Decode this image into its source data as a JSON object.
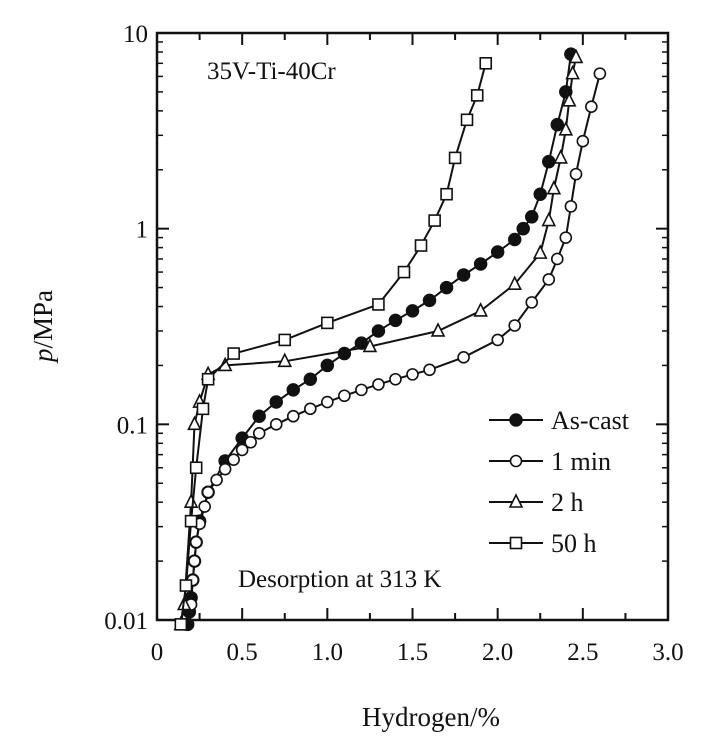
{
  "chart_data": {
    "type": "line",
    "x_scale": "linear",
    "y_scale": "log",
    "xlabel": "Hydrogen/%",
    "ylabel_italic": "p",
    "ylabel_rest": "/MPa",
    "xlim": [
      0,
      3.0
    ],
    "ylim": [
      0.01,
      10
    ],
    "x_ticks": [
      0,
      0.5,
      1.0,
      1.5,
      2.0,
      2.5,
      3.0
    ],
    "x_tick_labels": [
      "0",
      "0.5",
      "1.0",
      "1.5",
      "2.0",
      "2.5",
      "3.0"
    ],
    "y_ticks": [
      0.01,
      0.1,
      1,
      10
    ],
    "y_tick_labels": [
      "0.01",
      "0.1",
      "1",
      "10"
    ],
    "grid": false,
    "legend_position": "lower-right",
    "annotations": {
      "alloy": "35V-Ti-40Cr",
      "condition": "Desorption at 313 K"
    },
    "series": [
      {
        "name": "As-cast",
        "marker": "filled-circle",
        "points": [
          [
            0.18,
            0.0095
          ],
          [
            0.19,
            0.011
          ],
          [
            0.2,
            0.013
          ],
          [
            0.21,
            0.016
          ],
          [
            0.22,
            0.02
          ],
          [
            0.23,
            0.025
          ],
          [
            0.25,
            0.032
          ],
          [
            0.3,
            0.045
          ],
          [
            0.4,
            0.065
          ],
          [
            0.5,
            0.085
          ],
          [
            0.6,
            0.11
          ],
          [
            0.7,
            0.13
          ],
          [
            0.8,
            0.15
          ],
          [
            0.9,
            0.17
          ],
          [
            1.0,
            0.2
          ],
          [
            1.1,
            0.23
          ],
          [
            1.2,
            0.26
          ],
          [
            1.3,
            0.3
          ],
          [
            1.4,
            0.34
          ],
          [
            1.5,
            0.38
          ],
          [
            1.6,
            0.43
          ],
          [
            1.7,
            0.5
          ],
          [
            1.8,
            0.58
          ],
          [
            1.9,
            0.66
          ],
          [
            2.0,
            0.76
          ],
          [
            2.1,
            0.88
          ],
          [
            2.15,
            1.0
          ],
          [
            2.2,
            1.15
          ],
          [
            2.25,
            1.5
          ],
          [
            2.3,
            2.2
          ],
          [
            2.35,
            3.4
          ],
          [
            2.4,
            5.0
          ],
          [
            2.43,
            7.8
          ]
        ]
      },
      {
        "name": "1 min",
        "marker": "open-circle",
        "points": [
          [
            0.2,
            0.012
          ],
          [
            0.21,
            0.016
          ],
          [
            0.22,
            0.02
          ],
          [
            0.23,
            0.025
          ],
          [
            0.25,
            0.031
          ],
          [
            0.28,
            0.038
          ],
          [
            0.3,
            0.045
          ],
          [
            0.35,
            0.052
          ],
          [
            0.4,
            0.059
          ],
          [
            0.45,
            0.066
          ],
          [
            0.5,
            0.074
          ],
          [
            0.55,
            0.081
          ],
          [
            0.6,
            0.09
          ],
          [
            0.7,
            0.1
          ],
          [
            0.8,
            0.11
          ],
          [
            0.9,
            0.12
          ],
          [
            1.0,
            0.13
          ],
          [
            1.1,
            0.14
          ],
          [
            1.2,
            0.15
          ],
          [
            1.3,
            0.16
          ],
          [
            1.4,
            0.17
          ],
          [
            1.5,
            0.18
          ],
          [
            1.6,
            0.19
          ],
          [
            1.8,
            0.22
          ],
          [
            2.0,
            0.27
          ],
          [
            2.1,
            0.32
          ],
          [
            2.2,
            0.42
          ],
          [
            2.3,
            0.55
          ],
          [
            2.35,
            0.7
          ],
          [
            2.4,
            0.9
          ],
          [
            2.43,
            1.3
          ],
          [
            2.46,
            1.9
          ],
          [
            2.5,
            2.8
          ],
          [
            2.55,
            4.2
          ],
          [
            2.6,
            6.2
          ]
        ]
      },
      {
        "name": "2 h",
        "marker": "open-triangle",
        "points": [
          [
            0.14,
            0.0095
          ],
          [
            0.16,
            0.012
          ],
          [
            0.2,
            0.04
          ],
          [
            0.22,
            0.1
          ],
          [
            0.25,
            0.13
          ],
          [
            0.3,
            0.18
          ],
          [
            0.4,
            0.2
          ],
          [
            0.75,
            0.21
          ],
          [
            1.25,
            0.25
          ],
          [
            1.65,
            0.3
          ],
          [
            1.9,
            0.38
          ],
          [
            2.1,
            0.52
          ],
          [
            2.25,
            0.75
          ],
          [
            2.3,
            1.1
          ],
          [
            2.33,
            1.6
          ],
          [
            2.37,
            2.3
          ],
          [
            2.4,
            3.2
          ],
          [
            2.42,
            4.5
          ],
          [
            2.44,
            6.2
          ],
          [
            2.46,
            7.5
          ]
        ]
      },
      {
        "name": "50 h",
        "marker": "open-square",
        "points": [
          [
            0.14,
            0.0095
          ],
          [
            0.17,
            0.015
          ],
          [
            0.2,
            0.032
          ],
          [
            0.23,
            0.06
          ],
          [
            0.27,
            0.12
          ],
          [
            0.3,
            0.17
          ],
          [
            0.45,
            0.23
          ],
          [
            0.75,
            0.27
          ],
          [
            1.0,
            0.33
          ],
          [
            1.3,
            0.41
          ],
          [
            1.45,
            0.6
          ],
          [
            1.55,
            0.82
          ],
          [
            1.63,
            1.1
          ],
          [
            1.7,
            1.5
          ],
          [
            1.75,
            2.3
          ],
          [
            1.82,
            3.6
          ],
          [
            1.88,
            4.8
          ],
          [
            1.93,
            7.0
          ]
        ]
      }
    ]
  }
}
